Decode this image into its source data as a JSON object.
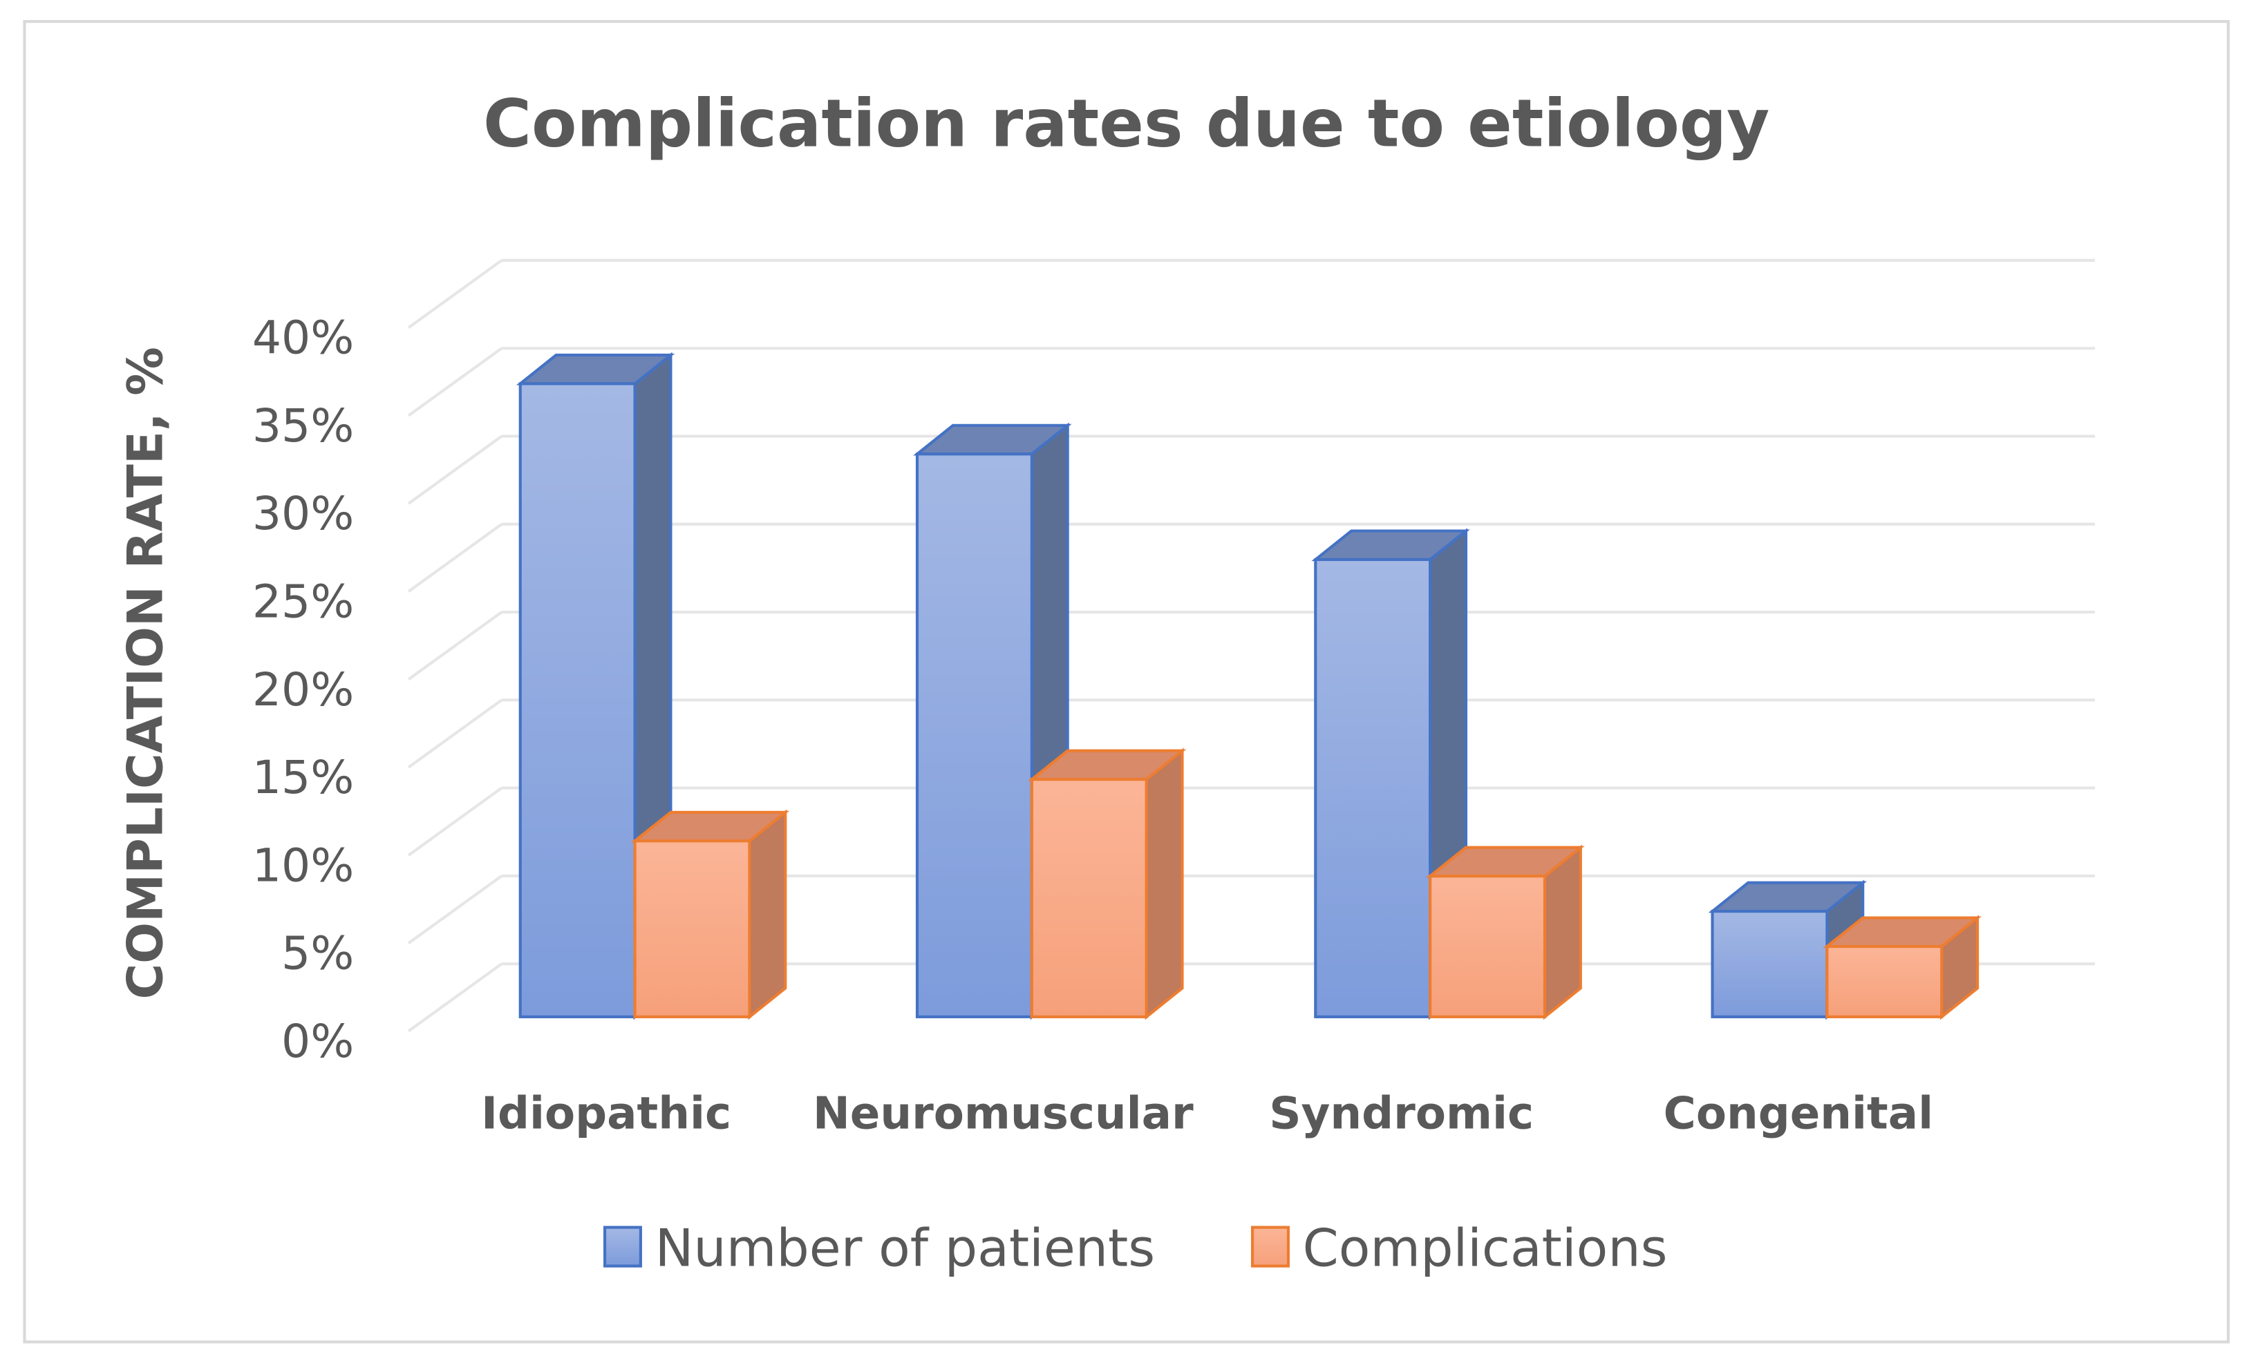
{
  "chart_data": {
    "type": "bar",
    "style": "3d-clustered-column",
    "title": "Complication rates due to etiology",
    "xlabel": "",
    "ylabel": "COMPLICATION  RATE, %",
    "ylim": [
      0,
      40
    ],
    "yticks": [
      "0%",
      "5%",
      "10%",
      "15%",
      "20%",
      "25%",
      "30%",
      "35%",
      "40%"
    ],
    "grid": true,
    "legend_position": "bottom",
    "categories": [
      "Idiopathic",
      "Neuromuscular",
      "Syndromic",
      "Congenital"
    ],
    "series": [
      {
        "name": "Number of patients",
        "values": [
          36,
          32,
          26,
          6
        ],
        "color": "#7f9ddc"
      },
      {
        "name": "Complications",
        "values": [
          10,
          13.5,
          8,
          4
        ],
        "color": "#f7a57c"
      }
    ]
  }
}
